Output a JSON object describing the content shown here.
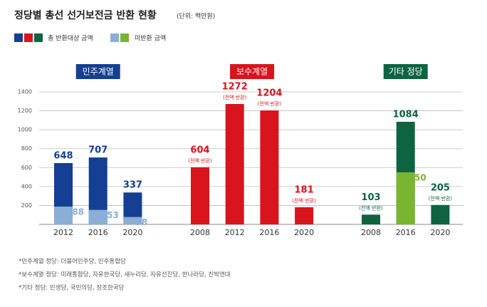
{
  "chart_data": {
    "type": "bar",
    "title": "정당별 총선 선거보전금 반환 현황",
    "unit": "(단위: 백만원)",
    "legend": [
      "총 반환대상 금액",
      "미반환 금액"
    ],
    "ylim": [
      0,
      1400
    ],
    "yticks": [
      200,
      400,
      600,
      800,
      1000,
      1200,
      1400
    ],
    "grid": true,
    "groups": [
      {
        "name": "민주계열",
        "color": "#143f92",
        "light_color": "#8aaed6",
        "categories": [
          "2012",
          "2016",
          "2020"
        ],
        "values": [
          648,
          707,
          337
        ],
        "unreturned": [
          188,
          153,
          78
        ],
        "notes": [
          null,
          null,
          null
        ]
      },
      {
        "name": "보수계열",
        "color": "#d8141d",
        "categories": [
          "2008",
          "2012",
          "2016",
          "2020"
        ],
        "values": [
          604,
          1272,
          1204,
          181
        ],
        "notes": [
          "(전액 반환)",
          "(전액 반환)",
          "(전액 반환)",
          "(전액 반환)"
        ]
      },
      {
        "name": "기타 정당",
        "color": "#0e6441",
        "light_color": "#7ab531",
        "categories": [
          "2008",
          "2016",
          "2020"
        ],
        "values": [
          103,
          1084,
          205
        ],
        "unreturned": [
          null,
          550,
          null
        ],
        "notes": [
          "(전액 반환)",
          null,
          "(전액 반환)"
        ]
      }
    ],
    "footnotes": [
      "*민주계열 정당: 더불어민주당, 민주통합당",
      "*보수계열 정당: 미래통합당, 자유한국당, 새누리당, 자유선진당, 한나라당, 친박연대",
      "*기타 정당: 민생당, 국민의당, 창조한국당"
    ]
  }
}
